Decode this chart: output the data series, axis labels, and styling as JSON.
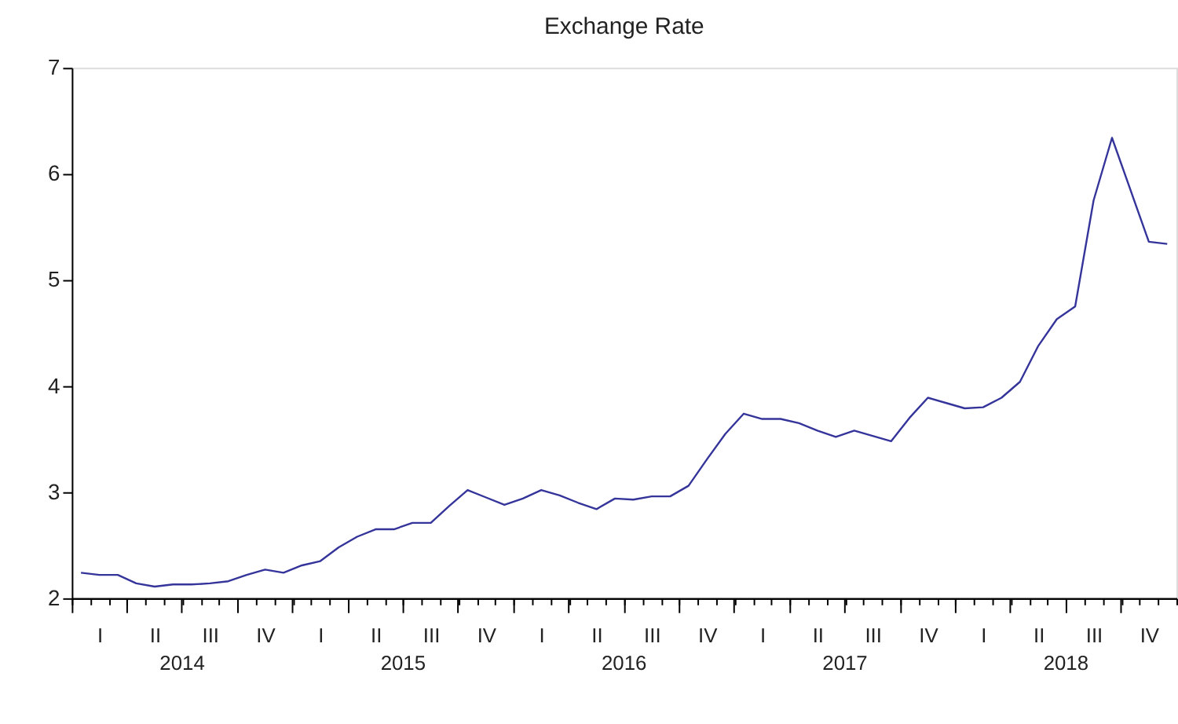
{
  "chart_data": {
    "type": "line",
    "title": "Exchange Rate",
    "categories": [
      null,
      "I",
      null,
      null,
      "II",
      null,
      null,
      "III",
      null,
      null,
      "IV",
      null,
      null,
      "I",
      null,
      null,
      "II",
      null,
      null,
      "III",
      null,
      null,
      "IV",
      null,
      null,
      "I",
      null,
      null,
      "II",
      null,
      null,
      "III",
      null,
      null,
      "IV",
      null,
      null,
      "I",
      null,
      null,
      "II",
      null,
      null,
      "III",
      null,
      null,
      "IV",
      null,
      null,
      "I",
      null,
      null,
      "II",
      null,
      null,
      "III",
      null,
      null,
      "IV",
      null
    ],
    "series": [
      {
        "color": "#34349a",
        "values": [
          2.24,
          2.22,
          2.22,
          2.14,
          2.11,
          2.13,
          2.13,
          2.14,
          2.16,
          2.22,
          2.27,
          2.24,
          2.31,
          2.35,
          2.48,
          2.58,
          2.65,
          2.65,
          2.71,
          2.71,
          2.87,
          3.02,
          2.95,
          2.88,
          2.94,
          3.02,
          2.97,
          2.9,
          2.84,
          2.94,
          2.93,
          2.96,
          2.96,
          3.06,
          3.31,
          3.55,
          3.74,
          3.69,
          3.69,
          3.65,
          3.58,
          3.52,
          3.58,
          3.53,
          3.48,
          3.7,
          3.89,
          3.84,
          3.79,
          3.8,
          3.89,
          4.04,
          4.38,
          4.63,
          4.75,
          5.75,
          6.34,
          5.85,
          5.36,
          5.34
        ]
      }
    ],
    "annotations": [
      "2014",
      "2015",
      "2016",
      "2017",
      "2018"
    ],
    "ylim": [
      2,
      7
    ],
    "yticks": [
      2,
      3,
      4,
      5,
      6,
      7
    ],
    "grid": false,
    "legend": false,
    "marker": "none",
    "line_style": "solid"
  }
}
